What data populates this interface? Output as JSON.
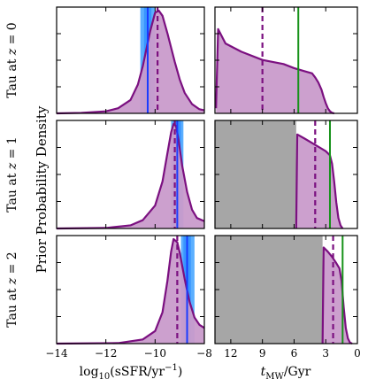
{
  "figure": {
    "shared_ylabel": "Prior Probability Density",
    "row_labels": [
      "Tau at z = 0",
      "Tau at z = 1",
      "Tau at z = 2"
    ],
    "left_xlabel": "log10(sSFR/yr^-1)",
    "right_xlabel": "t_MW/Gyr"
  },
  "chart_data": [
    {
      "type": "area",
      "row": 0,
      "panel": "sSFR",
      "xlim": [
        -14,
        -8
      ],
      "xticks": [
        -14,
        -12,
        -10,
        -8
      ],
      "band": [
        -10.6,
        -10.0
      ],
      "band_inner": [
        -10.45,
        -10.15
      ],
      "marker_line": -10.3,
      "median_dashed": -9.9,
      "curve_x": [
        -14,
        -13,
        -12,
        -11.5,
        -11,
        -10.7,
        -10.5,
        -10.2,
        -10.0,
        -9.85,
        -9.7,
        -9.5,
        -9.2,
        -9.0,
        -8.8,
        -8.5,
        -8.2,
        -8
      ],
      "curve_y": [
        0.0,
        0.005,
        0.02,
        0.05,
        0.13,
        0.28,
        0.46,
        0.8,
        0.98,
        1.0,
        0.95,
        0.78,
        0.5,
        0.33,
        0.2,
        0.09,
        0.04,
        0.03
      ]
    },
    {
      "type": "area",
      "row": 0,
      "panel": "tMW",
      "xlim": [
        13.5,
        0
      ],
      "xticks": [
        12,
        9,
        6,
        3,
        0
      ],
      "age_limit": null,
      "marker_line": 5.6,
      "median_dashed": 9.0,
      "curve_x": [
        13.4,
        13.2,
        12.5,
        11,
        9,
        7,
        6,
        5.0,
        4.3,
        4.0,
        3.7,
        3.4,
        3.2,
        3.0,
        2.8,
        2.6,
        2.4,
        2.2
      ],
      "curve_y": [
        0.05,
        0.82,
        0.68,
        0.6,
        0.52,
        0.48,
        0.44,
        0.41,
        0.39,
        0.35,
        0.3,
        0.23,
        0.16,
        0.1,
        0.05,
        0.02,
        0.005,
        0.0
      ]
    },
    {
      "type": "area",
      "row": 1,
      "panel": "sSFR",
      "xlim": [
        -14,
        -8
      ],
      "xticks": [
        -14,
        -12,
        -10,
        -8
      ],
      "band": [
        -9.35,
        -8.85
      ],
      "band_inner": [
        -9.25,
        -8.95
      ],
      "marker_line": -9.1,
      "median_dashed": -9.2,
      "curve_x": [
        -14,
        -12,
        -11,
        -10.5,
        -10.0,
        -9.7,
        -9.5,
        -9.35,
        -9.25,
        -9.15,
        -9.05,
        -8.9,
        -8.7,
        -8.5,
        -8.3,
        -8
      ],
      "curve_y": [
        0.0,
        0.005,
        0.03,
        0.08,
        0.22,
        0.45,
        0.72,
        0.92,
        1.0,
        0.98,
        0.85,
        0.6,
        0.35,
        0.18,
        0.1,
        0.07
      ]
    },
    {
      "type": "area",
      "row": 1,
      "panel": "tMW",
      "xlim": [
        13.5,
        0
      ],
      "xticks": [
        12,
        9,
        6,
        3,
        0
      ],
      "age_limit": 5.8,
      "marker_line": 2.6,
      "median_dashed": 4.0,
      "curve_x": [
        5.8,
        5.7,
        5.0,
        4.0,
        3.0,
        2.6,
        2.4,
        2.2,
        2.0,
        1.8,
        1.6,
        1.4
      ],
      "curve_y": [
        0.0,
        0.9,
        0.86,
        0.8,
        0.74,
        0.7,
        0.62,
        0.45,
        0.25,
        0.1,
        0.03,
        0.0
      ]
    },
    {
      "type": "area",
      "row": 2,
      "panel": "sSFR",
      "xlim": [
        -14,
        -8
      ],
      "xticks": [
        -14,
        -12,
        -10,
        -8
      ],
      "band": [
        -8.95,
        -8.4
      ],
      "band_inner": [
        -8.85,
        -8.55
      ],
      "marker_line": -8.7,
      "median_dashed": -9.1,
      "curve_x": [
        -14,
        -11.5,
        -10.5,
        -10.0,
        -9.7,
        -9.5,
        -9.35,
        -9.25,
        -9.1,
        -9.0,
        -8.8,
        -8.6,
        -8.4,
        -8.2,
        -8
      ],
      "curve_y": [
        0.0,
        0.005,
        0.04,
        0.12,
        0.3,
        0.6,
        0.88,
        1.0,
        0.97,
        0.87,
        0.62,
        0.4,
        0.25,
        0.18,
        0.15
      ]
    },
    {
      "type": "area",
      "row": 2,
      "panel": "tMW",
      "xlim": [
        13.5,
        0
      ],
      "xticks": [
        12,
        9,
        6,
        3,
        0
      ],
      "age_limit": 3.3,
      "marker_line": 1.4,
      "median_dashed": 2.3,
      "curve_x": [
        3.3,
        3.2,
        2.8,
        2.4,
        2.0,
        1.7,
        1.5,
        1.3,
        1.1,
        0.9,
        0.7,
        0.5
      ],
      "curve_y": [
        0.0,
        0.92,
        0.88,
        0.83,
        0.77,
        0.72,
        0.6,
        0.35,
        0.15,
        0.05,
        0.01,
        0.0
      ]
    }
  ],
  "colors": {
    "fill": "#c99bcb",
    "curve": "#7b1080",
    "band_outer": "#4aa6ff",
    "band_inner": "#2a8cff",
    "marker_sSFR": "#1a3cff",
    "marker_tMW": "#17921a",
    "excluded": "#a6a6a6"
  }
}
